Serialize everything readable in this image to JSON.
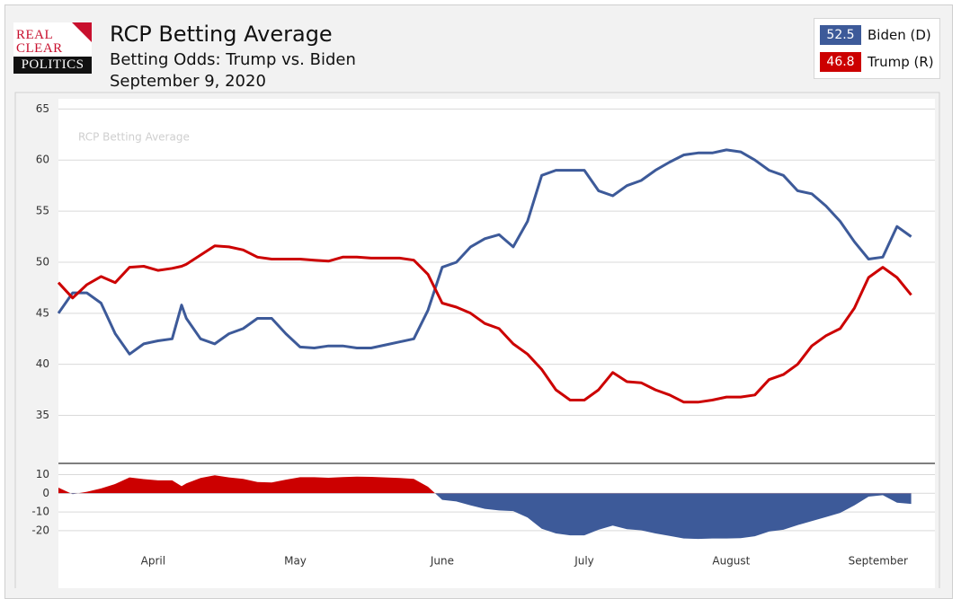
{
  "header": {
    "logo": [
      "REAL",
      "CLEAR",
      "POLITICS"
    ],
    "title": "RCP Betting Average",
    "subtitle": "Betting Odds: Trump vs. Biden",
    "date": "September 9, 2020"
  },
  "chart_data": [
    {
      "type": "line",
      "watermark": "RCP Betting Average",
      "x": [
        0,
        3,
        6,
        9,
        12,
        15,
        18,
        21,
        24,
        26,
        27,
        30,
        33,
        36,
        39,
        42,
        45,
        48,
        51,
        54,
        57,
        60,
        63,
        66,
        69,
        72,
        75,
        78,
        81,
        84,
        87,
        90,
        93,
        96,
        99,
        102,
        105,
        108,
        111,
        114,
        117,
        120,
        123,
        126,
        129,
        132,
        135,
        138,
        141,
        144,
        147,
        150,
        153,
        156,
        159,
        162,
        165,
        168,
        171,
        174,
        177,
        180
      ],
      "xlim": [
        0,
        185
      ],
      "ylim": [
        30.3,
        66
      ],
      "yticks": [
        35,
        40,
        45,
        50,
        55,
        60,
        65
      ],
      "grid": true,
      "series": [
        {
          "name": "Biden (D)",
          "color": "#3d5a99",
          "latest": 52.5,
          "values": [
            45,
            47,
            47,
            46,
            43,
            41,
            42,
            42.3,
            42.5,
            45.8,
            44.5,
            42.5,
            42,
            43,
            43.5,
            44.5,
            44.5,
            43,
            41.7,
            41.6,
            41.8,
            41.8,
            41.6,
            41.6,
            41.9,
            42.2,
            42.5,
            45.3,
            49.5,
            50,
            51.5,
            52.3,
            52.7,
            51.5,
            54,
            58.5,
            59,
            59,
            59,
            57,
            56.5,
            57.5,
            58,
            59,
            59.8,
            60.5,
            60.7,
            60.7,
            61,
            60.8,
            60,
            59,
            58.5,
            57,
            56.7,
            55.5,
            54,
            52,
            50.3,
            50.5,
            53.5,
            52.5
          ]
        },
        {
          "name": "Trump (R)",
          "color": "#cc0000",
          "latest": 46.8,
          "values": [
            48,
            46.5,
            47.8,
            48.6,
            48,
            49.5,
            49.6,
            49.2,
            49.4,
            49.6,
            49.8,
            50.7,
            51.6,
            51.5,
            51.2,
            50.5,
            50.3,
            50.3,
            50.3,
            50.2,
            50.1,
            50.5,
            50.5,
            50.4,
            50.4,
            50.4,
            50.2,
            48.8,
            46,
            45.6,
            45,
            44,
            43.5,
            42,
            41,
            39.5,
            37.5,
            36.5,
            36.5,
            37.5,
            39.2,
            38.3,
            38.2,
            37.5,
            37,
            36.3,
            36.3,
            36.5,
            36.8,
            36.8,
            37,
            38.5,
            39,
            40,
            41.8,
            42.8,
            43.5,
            45.5,
            48.5,
            49.5,
            48.5,
            46.8
          ]
        }
      ]
    },
    {
      "type": "area",
      "x": [
        0,
        3,
        6,
        9,
        12,
        15,
        18,
        21,
        24,
        26,
        27,
        30,
        33,
        36,
        39,
        42,
        45,
        48,
        51,
        54,
        57,
        60,
        63,
        66,
        69,
        72,
        75,
        78,
        81,
        84,
        87,
        90,
        93,
        96,
        99,
        102,
        105,
        108,
        111,
        114,
        117,
        120,
        123,
        126,
        129,
        132,
        135,
        138,
        141,
        144,
        147,
        150,
        153,
        156,
        159,
        162,
        165,
        168,
        171,
        174,
        177,
        180
      ],
      "xlim": [
        0,
        185
      ],
      "xticks": [
        {
          "value": 20,
          "label": "April"
        },
        {
          "value": 50,
          "label": "May"
        },
        {
          "value": 81,
          "label": "June"
        },
        {
          "value": 111,
          "label": "July"
        },
        {
          "value": 142,
          "label": "August"
        },
        {
          "value": 173,
          "label": "September"
        }
      ],
      "ylim": [
        -46,
        16
      ],
      "yticks": [
        -20,
        -10,
        0,
        10
      ],
      "grid": true,
      "positive_color": "#cc0000",
      "negative_color": "#3d5a99",
      "values": [
        3,
        -0.5,
        0.8,
        2.6,
        5,
        8.5,
        7.6,
        6.9,
        6.9,
        3.8,
        5.3,
        8.2,
        9.6,
        8.5,
        7.7,
        6,
        5.8,
        7.3,
        8.6,
        8.6,
        8.3,
        8.7,
        8.9,
        8.8,
        8.5,
        8.2,
        7.7,
        3.5,
        -3.5,
        -4.4,
        -6.5,
        -8.3,
        -9.2,
        -9.5,
        -13,
        -19,
        -21.5,
        -22.5,
        -22.5,
        -19.5,
        -17.3,
        -19.2,
        -19.8,
        -21.5,
        -22.8,
        -24.2,
        -24.4,
        -24.2,
        -24.2,
        -24,
        -23,
        -20.5,
        -19.5,
        -17,
        -14.9,
        -12.7,
        -10.5,
        -6.5,
        -1.8,
        -1,
        -5,
        -5.7
      ]
    }
  ]
}
